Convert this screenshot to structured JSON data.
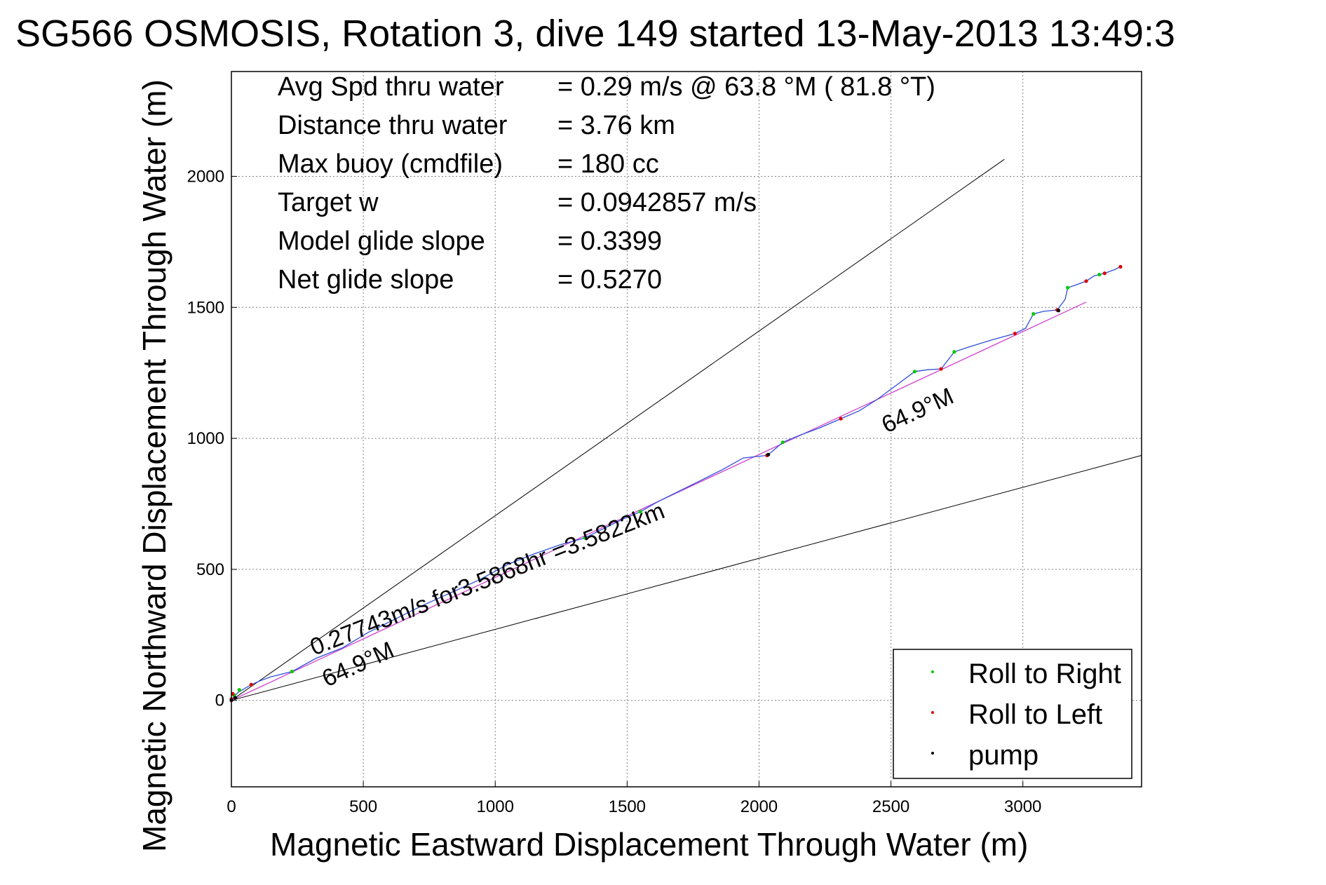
{
  "chart_data": {
    "type": "line",
    "title": "SG566 OSMOSIS, Rotation 3, dive 149 started 13-May-2013 13:49:3",
    "xlabel": "Magnetic Eastward Displacement Through Water (m)",
    "ylabel": "Magnetic Northward Displacement Through Water (m)",
    "xlim": [
      0,
      3450
    ],
    "ylim": [
      -330,
      2400
    ],
    "x_ticks": [
      "0",
      "500",
      "1000",
      "1500",
      "2000",
      "2500",
      "3000"
    ],
    "y_ticks": [
      "0",
      "500",
      "1000",
      "1500",
      "2000"
    ],
    "grid": true,
    "info_lines": [
      {
        "label": "Avg Spd thru water",
        "value": "=  0.29 m/s @  63.8 °M ( 81.8 °T)"
      },
      {
        "label": "Distance thru water",
        "value": "=  3.76 km"
      },
      {
        "label": "Max buoy (cmdfile)",
        "value": "= 180 cc"
      },
      {
        "label": "Target w",
        "value": "= 0.0942857 m/s"
      },
      {
        "label": "Model glide slope",
        "value": "= 0.3399"
      },
      {
        "label": "Net glide slope",
        "value": "= 0.5270"
      }
    ],
    "annotations": {
      "speed_text": "0.27743m/s for3.5868hr =3.5822km",
      "heading_low": "64.9°M",
      "heading_high": "64.9°M"
    },
    "reference_lines": [
      {
        "x": [
          0,
          2930
        ],
        "y": [
          0,
          2065
        ]
      },
      {
        "x": [
          0,
          3450
        ],
        "y": [
          0,
          935
        ]
      },
      {
        "x": [
          0,
          3240
        ],
        "y": [
          0,
          1520
        ]
      }
    ],
    "series": [
      {
        "x": [
          0,
          10,
          25,
          50,
          75,
          110,
          150,
          230,
          320,
          420,
          520,
          620,
          720,
          830,
          940,
          1050,
          1150,
          1250,
          1340,
          1420,
          1480,
          1550,
          1620,
          1700,
          1780,
          1860,
          1940,
          2030,
          2050,
          2090,
          2150,
          2230,
          2310,
          2380,
          2450,
          2530,
          2590,
          2640,
          2690,
          2740,
          2800,
          2880,
          2970,
          3010,
          3040,
          3080,
          3130,
          3160,
          3170,
          3200,
          3240,
          3270,
          3290,
          3310,
          3350,
          3370
        ],
        "y": [
          0,
          15,
          30,
          45,
          60,
          75,
          90,
          110,
          160,
          200,
          260,
          310,
          360,
          410,
          460,
          520,
          560,
          595,
          620,
          660,
          690,
          720,
          760,
          800,
          840,
          880,
          925,
          935,
          950,
          985,
          1010,
          1040,
          1075,
          1105,
          1150,
          1210,
          1255,
          1262,
          1265,
          1330,
          1350,
          1375,
          1400,
          1420,
          1475,
          1485,
          1490,
          1530,
          1575,
          1585,
          1600,
          1620,
          1625,
          1630,
          1645,
          1655
        ]
      }
    ],
    "markers": {
      "roll_right": {
        "color": "#00cc00",
        "x": [
          10,
          30,
          230,
          1340,
          1550,
          2090,
          2590,
          2740,
          3040,
          3170,
          3290
        ],
        "y": [
          20,
          40,
          110,
          620,
          720,
          985,
          1255,
          1330,
          1475,
          1575,
          1625
        ]
      },
      "roll_left": {
        "color": "#dd0000",
        "x": [
          0,
          5,
          75,
          2030,
          2310,
          2690,
          2970,
          3130,
          3240,
          3310,
          3370
        ],
        "y": [
          5,
          25,
          60,
          935,
          1075,
          1265,
          1400,
          1490,
          1600,
          1630,
          1655
        ]
      },
      "pump": {
        "color": "#000000",
        "x": [
          0,
          15,
          2035,
          3135
        ],
        "y": [
          0,
          10,
          938,
          1488
        ]
      }
    },
    "colors": {
      "track": "#2f4fd8",
      "fit": "#d040d0",
      "reference": "#000000",
      "grid": "#808080"
    },
    "legend": {
      "position": "bottom-right",
      "entries": [
        {
          "label": "Roll to Right",
          "color": "#00cc00"
        },
        {
          "label": "Roll to Left",
          "color": "#dd0000"
        },
        {
          "label": "pump",
          "color": "#000000"
        }
      ]
    }
  }
}
